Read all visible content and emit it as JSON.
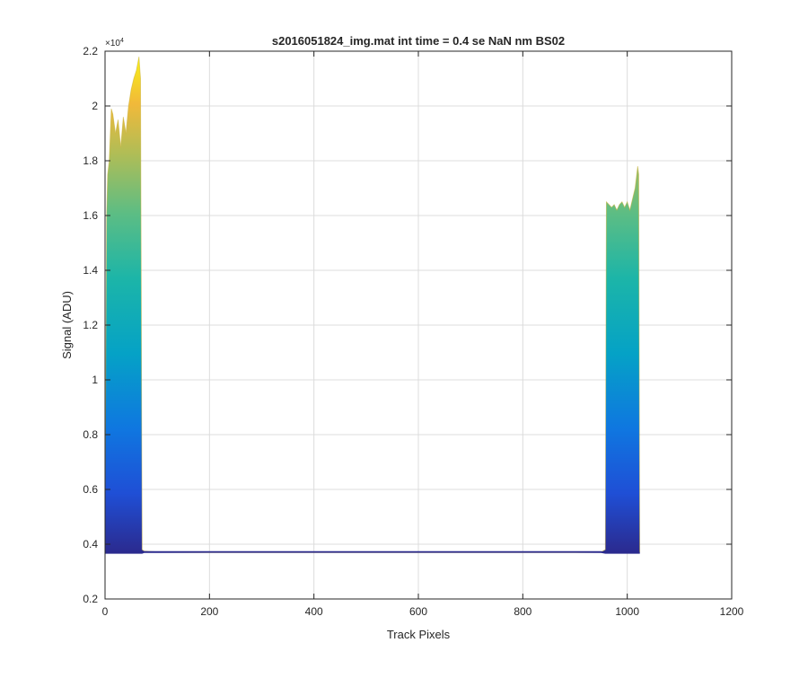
{
  "chart_data": {
    "type": "area",
    "title": "s2016051824_img.mat int time = 0.4 se  NaN nm BS02",
    "xlabel": "Track Pixels",
    "ylabel": "Signal (ADU)",
    "y_multiplier_label": "×10",
    "y_multiplier_exponent": "4",
    "xlim": [
      0,
      1200
    ],
    "ylim": [
      2000,
      22000
    ],
    "x_ticks": [
      0,
      200,
      400,
      600,
      800,
      1000,
      1200
    ],
    "x_tick_labels": [
      "0",
      "200",
      "400",
      "600",
      "800",
      "1000",
      "1200"
    ],
    "y_ticks": [
      2000,
      4000,
      6000,
      8000,
      10000,
      12000,
      14000,
      16000,
      18000,
      20000,
      22000
    ],
    "y_tick_labels": [
      "0.2",
      "0.4",
      "0.6",
      "0.8",
      "1",
      "1.2",
      "1.4",
      "1.6",
      "1.8",
      "2",
      "2.2"
    ],
    "grid": true,
    "colormap": "parula",
    "series": [
      {
        "x": [
          0,
          3,
          5,
          8,
          12,
          15,
          20,
          25,
          30,
          35,
          40,
          45,
          50,
          55,
          60,
          65,
          68,
          71,
          75,
          100,
          200,
          300,
          400,
          500,
          600,
          700,
          800,
          900,
          950,
          958,
          960,
          965,
          970,
          975,
          980,
          985,
          990,
          995,
          1000,
          1005,
          1010,
          1015,
          1020,
          1022,
          1024
        ],
        "upper": [
          5000,
          16000,
          17500,
          18000,
          19900,
          19700,
          19000,
          19500,
          18500,
          19600,
          19000,
          20000,
          20600,
          21000,
          21300,
          21800,
          21000,
          3800,
          3750,
          3720,
          3700,
          3700,
          3700,
          3700,
          3700,
          3700,
          3700,
          3700,
          3720,
          3800,
          16500,
          16400,
          16300,
          16400,
          16200,
          16400,
          16500,
          16300,
          16500,
          16200,
          16600,
          17000,
          17800,
          17500,
          3700
        ],
        "lower": [
          3650,
          3650,
          3650,
          3650,
          3650,
          3650,
          3650,
          3650,
          3650,
          3650,
          3650,
          3650,
          3650,
          3650,
          3650,
          3650,
          3650,
          3650,
          3680,
          3680,
          3680,
          3680,
          3680,
          3680,
          3680,
          3680,
          3680,
          3680,
          3680,
          3650,
          3650,
          3650,
          3650,
          3650,
          3650,
          3650,
          3650,
          3650,
          3650,
          3650,
          3650,
          3650,
          3650,
          3650,
          3650
        ]
      }
    ]
  }
}
